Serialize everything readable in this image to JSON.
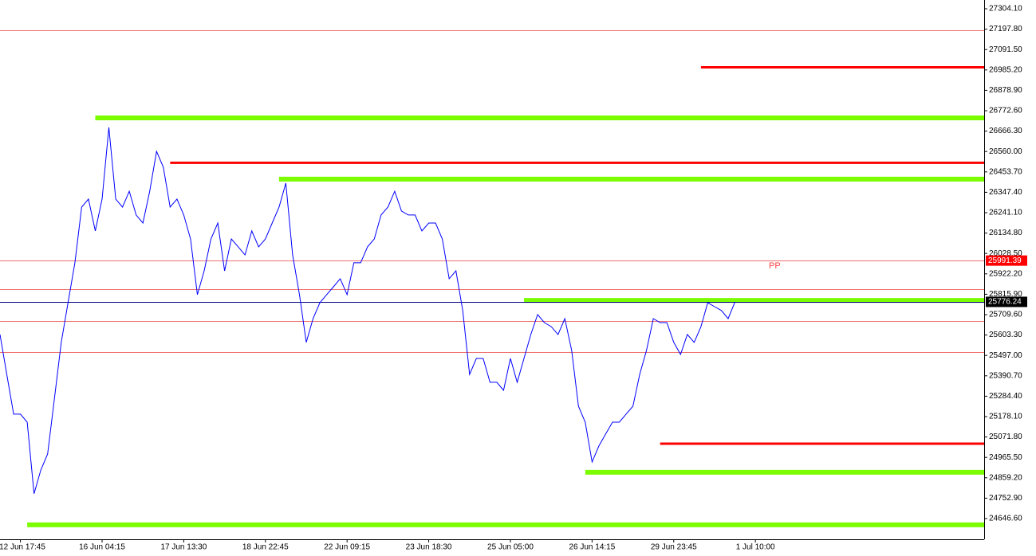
{
  "chart_data": {
    "type": "line",
    "categories": [
      null,
      null,
      null,
      "12 Jun 17:45",
      null,
      null,
      null,
      null,
      null,
      null,
      null,
      null,
      null,
      null,
      null,
      "16 Jun 04:15",
      null,
      null,
      null,
      null,
      null,
      null,
      null,
      null,
      null,
      null,
      null,
      "17 Jun 13:30",
      null,
      null,
      null,
      null,
      null,
      null,
      null,
      null,
      null,
      null,
      null,
      "18 Jun 22:45",
      null,
      null,
      null,
      null,
      null,
      null,
      null,
      null,
      null,
      null,
      null,
      "22 Jun 09:15",
      null,
      null,
      null,
      null,
      null,
      null,
      null,
      null,
      null,
      null,
      null,
      "23 Jun 18:30",
      null,
      null,
      null,
      null,
      null,
      null,
      null,
      null,
      null,
      null,
      null,
      "25 Jun 05:00",
      null,
      null,
      null,
      null,
      null,
      null,
      null,
      null,
      null,
      null,
      null,
      "26 Jun 14:15",
      null,
      null,
      null,
      null,
      null,
      null,
      null,
      null,
      null,
      null,
      null,
      "29 Jun 23:45",
      null,
      null,
      null,
      null,
      null,
      null,
      null,
      null,
      null,
      null,
      null,
      "1 Jul 10:00"
    ],
    "series": [
      {
        "color": "#0000ff",
        "values": [
          25606,
          25398,
          25191,
          25191,
          25149,
          24776,
          24900,
          24983,
          25274,
          25565,
          25772,
          25980,
          26270,
          26312,
          26146,
          26312,
          26686,
          26312,
          26270,
          26353,
          26229,
          26187,
          26353,
          26561,
          26478,
          26270,
          26312,
          26229,
          26104,
          25814,
          25938,
          26104,
          26187,
          25938,
          26104,
          26063,
          26021,
          26146,
          26063,
          26104,
          26187,
          26270,
          26395,
          26021,
          25814,
          25565,
          25689,
          25772,
          25814,
          25855,
          25897,
          25814,
          25980,
          25980,
          26063,
          26104,
          26229,
          26270,
          26353,
          26250,
          26229,
          26229,
          26146,
          26187,
          26187,
          26104,
          25897,
          25938,
          25731,
          25398,
          25481,
          25481,
          25357,
          25357,
          25315,
          25481,
          25357,
          25481,
          25606,
          25710,
          25668,
          25647,
          25606,
          25689,
          25523,
          25232,
          25149,
          24942,
          25025,
          25087,
          25149,
          25149,
          25191,
          25232,
          25398,
          25523,
          25689,
          25668,
          25668,
          25565,
          25502,
          25606,
          25565,
          25647,
          25772,
          25751,
          25731,
          25689,
          25776.24,
          null,
          null,
          null
        ]
      }
    ],
    "ylim": [
      24538.6,
      27349.8
    ],
    "yticks": [
      {
        "value": 27304.1,
        "label": "27304.10"
      },
      {
        "value": 27197.8,
        "label": "27197.80"
      },
      {
        "value": 27091.5,
        "label": "27091.50"
      },
      {
        "value": 26985.2,
        "label": "26985.20"
      },
      {
        "value": 26878.9,
        "label": "26878.90"
      },
      {
        "value": 26772.6,
        "label": "26772.60"
      },
      {
        "value": 26666.3,
        "label": "26666.30"
      },
      {
        "value": 26560,
        "label": "26560.00"
      },
      {
        "value": 26453.7,
        "label": "26453.70"
      },
      {
        "value": 26347.4,
        "label": "26347.40"
      },
      {
        "value": 26241.1,
        "label": "26241.10"
      },
      {
        "value": 26134.8,
        "label": "26134.80"
      },
      {
        "value": 26028.5,
        "label": "26028.50"
      },
      {
        "value": 25922.2,
        "label": "25922.20"
      },
      {
        "value": 25815.9,
        "label": "25815.90"
      },
      {
        "value": 25709.6,
        "label": "25709.60"
      },
      {
        "value": 25603.3,
        "label": "25603.30"
      },
      {
        "value": 25497,
        "label": "25497.00"
      },
      {
        "value": 25390.7,
        "label": "25390.70"
      },
      {
        "value": 25284.4,
        "label": "25284.40"
      },
      {
        "value": 25178.1,
        "label": "25178.10"
      },
      {
        "value": 25071.8,
        "label": "25071.80"
      },
      {
        "value": 24965.5,
        "label": "24965.50"
      },
      {
        "value": 24859.2,
        "label": "24859.20"
      },
      {
        "value": 24752.9,
        "label": "24752.90"
      },
      {
        "value": 24646.6,
        "label": "24646.60"
      }
    ],
    "thin_lines": {
      "color": "#f07070",
      "values": [
        27192,
        25991.39,
        25842,
        25676,
        25515
      ]
    },
    "resistance_lines": {
      "color": "#ff0000",
      "levels": [
        {
          "value": 26999,
          "from": 103
        },
        {
          "value": 26501,
          "from": 25
        },
        {
          "value": 25037,
          "from": 97
        }
      ]
    },
    "support_lines": {
      "color": "#7cfc00",
      "levels": [
        {
          "value": 26735,
          "from": 14
        },
        {
          "value": 26416,
          "from": 41
        },
        {
          "value": 25784,
          "from": 77
        },
        {
          "value": 24888,
          "from": 86
        },
        {
          "value": 24614,
          "from": 4
        }
      ]
    },
    "price_labels": [
      {
        "value": 25991.39,
        "label": "25991.39",
        "color": "#ff0000"
      },
      {
        "value": 25776.24,
        "label": "25776.24",
        "color": "#000000"
      }
    ],
    "annotations": [
      {
        "text": "PP",
        "color": "#ff4040"
      }
    ]
  }
}
